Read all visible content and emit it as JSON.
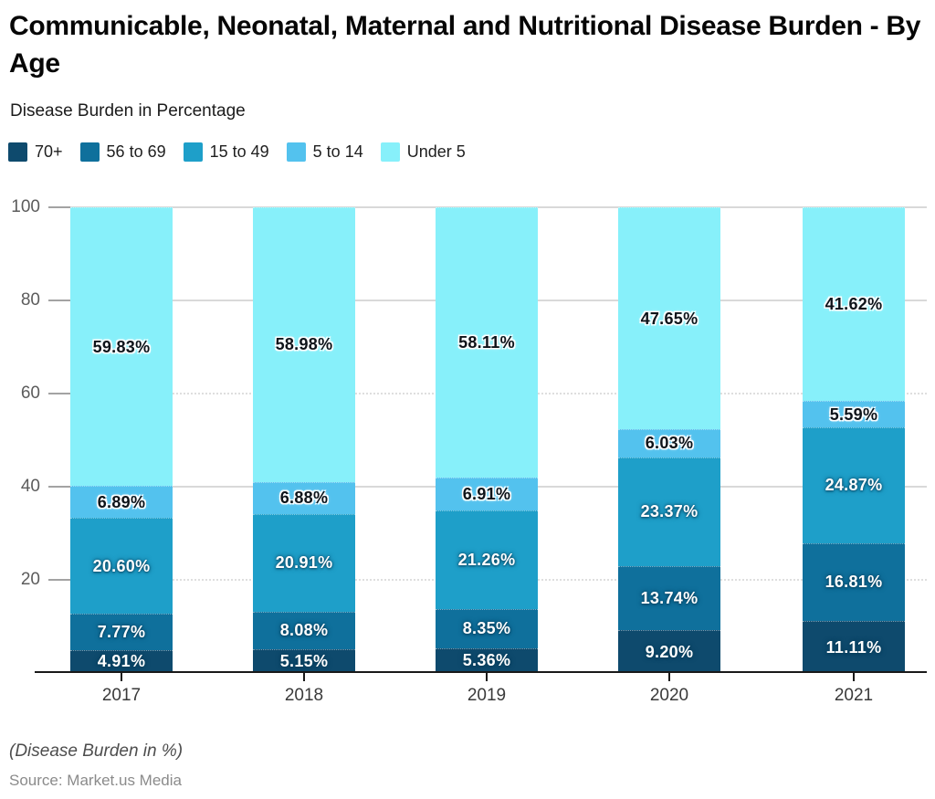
{
  "header": {
    "title": "Communicable, Neonatal, Maternal and Nutritional Disease Burden - By Age",
    "subtitle": "Disease Burden in Percentage"
  },
  "chart_data": {
    "type": "bar",
    "stacked": true,
    "title": "Communicable, Neonatal, Maternal and Nutritional Disease Burden - By Age",
    "subtitle": "Disease Burden in Percentage",
    "categories": [
      "2017",
      "2018",
      "2019",
      "2020",
      "2021"
    ],
    "series": [
      {
        "name": "70+",
        "color": "#0E4A6D",
        "label_style": "on-dark",
        "values": [
          4.91,
          5.15,
          5.36,
          9.2,
          11.11
        ]
      },
      {
        "name": "56 to 69",
        "color": "#0F709C",
        "label_style": "on-dark",
        "values": [
          7.77,
          8.08,
          8.35,
          13.74,
          16.81
        ]
      },
      {
        "name": "15 to 49",
        "color": "#1E9FC9",
        "label_style": "on-dark",
        "values": [
          20.6,
          20.91,
          21.26,
          23.37,
          24.87
        ]
      },
      {
        "name": "5 to 14",
        "color": "#53C2EE",
        "label_style": "on-light",
        "values": [
          6.89,
          6.88,
          6.91,
          6.03,
          5.59
        ]
      },
      {
        "name": "Under 5",
        "color": "#87F0FA",
        "label_style": "on-light",
        "values": [
          59.83,
          58.98,
          58.11,
          47.65,
          41.62
        ]
      }
    ],
    "value_suffix": "%",
    "value_decimals": 2,
    "ylim": [
      0,
      100
    ],
    "yticks": [
      100,
      80,
      60,
      40,
      20
    ],
    "yticks_dotted": [
      60,
      20
    ],
    "grid": true,
    "legend_position": "top"
  },
  "footer": {
    "note": "(Disease Burden in %)",
    "source": "Source: Market.us Media"
  }
}
